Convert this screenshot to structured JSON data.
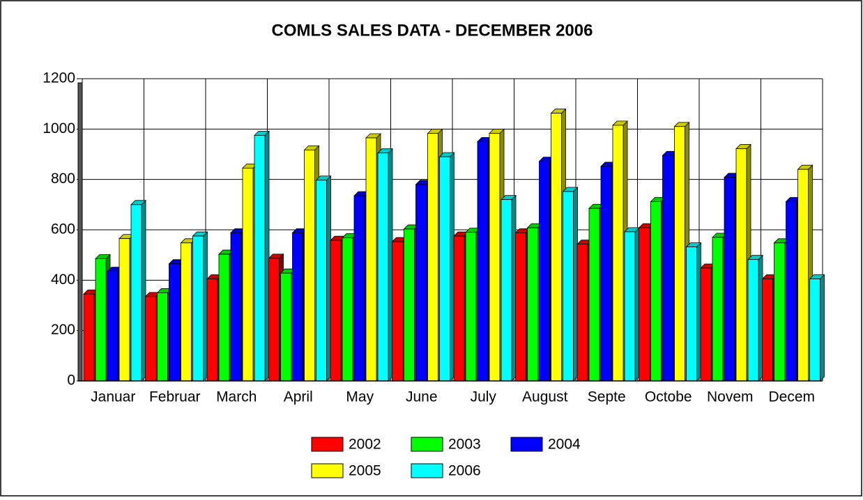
{
  "chart_data": {
    "type": "bar",
    "title": "COMLS SALES DATA - DECEMBER 2006",
    "categories": [
      "Januar",
      "Februar",
      "March",
      "April",
      "May",
      "June",
      "July",
      "August",
      "Septe",
      "Octobe",
      "Novem",
      "Decem"
    ],
    "series": [
      {
        "name": "2002",
        "color": "#ff0000",
        "values": [
          345,
          335,
          405,
          487,
          558,
          553,
          575,
          588,
          543,
          608,
          448,
          405
        ]
      },
      {
        "name": "2003",
        "color": "#00ff00",
        "values": [
          485,
          350,
          503,
          428,
          568,
          603,
          590,
          608,
          685,
          712,
          570,
          548
        ]
      },
      {
        "name": "2004",
        "color": "#0000ff",
        "values": [
          435,
          465,
          588,
          588,
          735,
          780,
          950,
          872,
          852,
          895,
          808,
          712
        ]
      },
      {
        "name": "2005",
        "color": "#ffff00",
        "values": [
          565,
          548,
          845,
          917,
          965,
          983,
          983,
          1063,
          1015,
          1010,
          922,
          840
        ]
      },
      {
        "name": "2006",
        "color": "#00ffff",
        "values": [
          700,
          575,
          975,
          797,
          905,
          890,
          720,
          752,
          592,
          532,
          482,
          405
        ]
      }
    ],
    "ylim": [
      0,
      1200
    ],
    "yticks": [
      0,
      200,
      400,
      600,
      800,
      1000,
      1200
    ],
    "grid": true
  }
}
